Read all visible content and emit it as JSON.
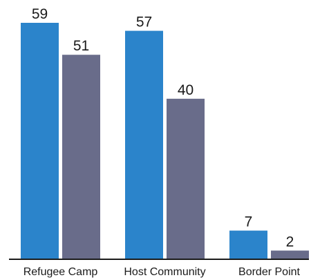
{
  "chart_data": {
    "type": "bar",
    "categories": [
      "Refugee Camp",
      "Host Community",
      "Border Point"
    ],
    "series": [
      {
        "values": [
          59,
          57,
          7
        ],
        "color": "#2b84cb"
      },
      {
        "values": [
          51,
          40,
          2
        ],
        "color": "#696c8a"
      }
    ],
    "ylim": [
      0,
      59
    ],
    "grid": false,
    "legend": "none",
    "axis_color": "#1a1a1a"
  }
}
